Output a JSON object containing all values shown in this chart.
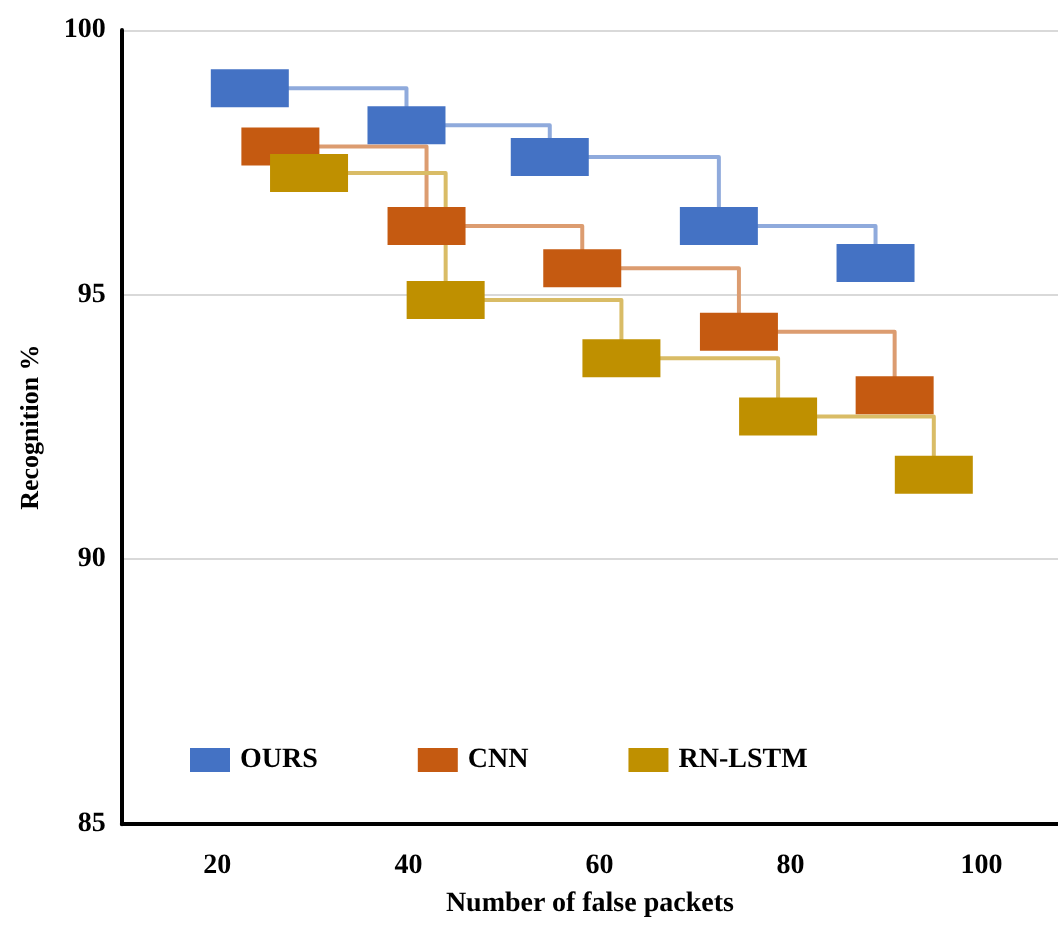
{
  "chart_data": {
    "type": "step",
    "xlabel": "Number of false packets",
    "ylabel": "Recognition %",
    "series": [
      {
        "name": "OURS",
        "color": "#4472c4",
        "x": [
          23.4,
          39.8,
          54.8,
          72.5,
          88.9
        ],
        "values": [
          98.9,
          98.2,
          97.6,
          96.3,
          95.6
        ]
      },
      {
        "name": "CNN",
        "color": "#c55a11",
        "x": [
          26.6,
          41.9,
          58.2,
          74.6,
          90.9
        ],
        "values": [
          97.8,
          96.3,
          95.5,
          94.3,
          93.1
        ]
      },
      {
        "name": "RN-LSTM",
        "color": "#bf9000",
        "x": [
          29.6,
          43.9,
          62.3,
          78.7,
          95.0
        ],
        "values": [
          97.3,
          94.9,
          93.8,
          92.7,
          91.6
        ]
      }
    ],
    "xlim": [
      10,
      108
    ],
    "xticks": [
      20,
      40,
      60,
      80,
      100
    ],
    "ylim": [
      85,
      100
    ],
    "yticks": [
      85,
      90,
      95,
      100
    ],
    "grid": "y",
    "legend": "bottom left",
    "marker": "square"
  }
}
